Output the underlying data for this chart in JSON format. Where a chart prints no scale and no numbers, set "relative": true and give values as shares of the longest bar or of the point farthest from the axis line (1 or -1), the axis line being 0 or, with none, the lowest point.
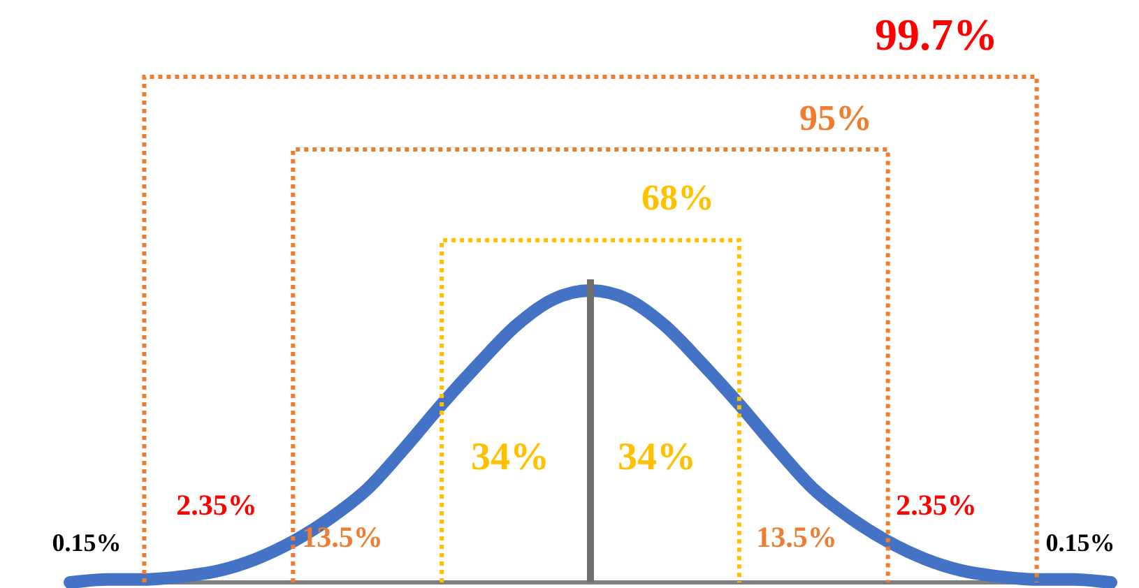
{
  "chart_data": {
    "type": "line",
    "relative": true,
    "marker": "none",
    "line_style": "solid",
    "grid": false,
    "legend": false,
    "categories": [
      null,
      null,
      null,
      null,
      null,
      null,
      null,
      null,
      null,
      null,
      null,
      null,
      null,
      null,
      null,
      null,
      null,
      null,
      null,
      null,
      null,
      null,
      null,
      null,
      null,
      null,
      null,
      null,
      null
    ],
    "series": [
      {
        "color": "#4472c4",
        "values": [
          0.0,
          0.01,
          0.01,
          0.02,
          0.04,
          0.08,
          0.14,
          0.22,
          0.32,
          0.46,
          0.61,
          0.75,
          0.88,
          0.97,
          1,
          0.97,
          0.88,
          0.75,
          0.61,
          0.46,
          0.32,
          0.22,
          0.14,
          0.08,
          0.04,
          0.02,
          0.01,
          0.01,
          0.0
        ]
      }
    ],
    "annotations": [
      "99.7%",
      "95%",
      "68%",
      "34%",
      "34%",
      "13.5%",
      "13.5%",
      "2.35%",
      "2.35%",
      "0.15%",
      "0.15%"
    ]
  }
}
